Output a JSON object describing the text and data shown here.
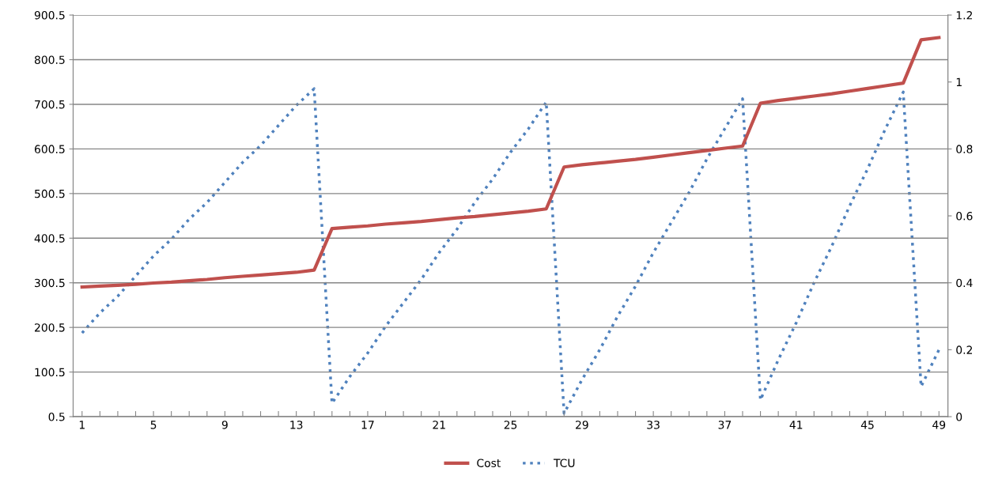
{
  "chart_data": {
    "type": "line",
    "categories": [
      "1",
      null,
      null,
      null,
      "5",
      null,
      null,
      null,
      "9",
      null,
      null,
      null,
      "13",
      null,
      null,
      null,
      "17",
      null,
      null,
      null,
      "21",
      null,
      null,
      null,
      "25",
      null,
      null,
      null,
      "29",
      null,
      null,
      null,
      "33",
      null,
      null,
      null,
      "37",
      null,
      null,
      null,
      "41",
      null,
      null,
      null,
      "45",
      null,
      null,
      null,
      "49"
    ],
    "series": [
      {
        "name": "Cost",
        "color": "#c0504d",
        "line_style": "solid",
        "values": [
          291,
          293,
          295,
          297,
          300,
          302,
          305,
          308,
          312,
          315,
          318,
          321,
          324,
          329,
          422,
          425,
          428,
          432,
          435,
          438,
          442,
          446,
          449,
          453,
          457,
          461,
          466,
          560,
          565,
          569,
          573,
          577,
          582,
          587,
          592,
          597,
          602,
          607,
          703,
          709,
          714,
          719,
          724,
          730,
          736,
          742,
          748,
          845,
          850
        ]
      },
      {
        "name": "TCU",
        "color": "#4f81bd",
        "line_style": "dotted",
        "axis": "y2",
        "values": [
          0.25,
          0.31,
          0.36,
          0.42,
          0.48,
          0.53,
          0.59,
          0.64,
          0.7,
          0.76,
          0.81,
          0.87,
          0.93,
          0.98,
          0.04,
          0.12,
          0.19,
          0.27,
          0.34,
          0.41,
          0.49,
          0.56,
          0.64,
          0.71,
          0.79,
          0.86,
          0.94,
          0.01,
          0.11,
          0.2,
          0.3,
          0.39,
          0.49,
          0.58,
          0.67,
          0.77,
          0.86,
          0.95,
          0.05,
          0.17,
          0.28,
          0.4,
          0.51,
          0.63,
          0.74,
          0.86,
          0.97,
          0.09,
          0.2
        ]
      }
    ],
    "ylim": [
      0.5,
      900.5
    ],
    "yticks": [
      0.5,
      100.5,
      200.5,
      300.5,
      400.5,
      500.5,
      600.5,
      700.5,
      800.5,
      900.5
    ],
    "y2lim": [
      0,
      1.2
    ],
    "y2ticks": [
      0,
      0.2,
      0.4,
      0.6,
      0.8,
      1,
      1.2
    ],
    "grid": "y",
    "legend": "bottom",
    "marker": "none"
  }
}
